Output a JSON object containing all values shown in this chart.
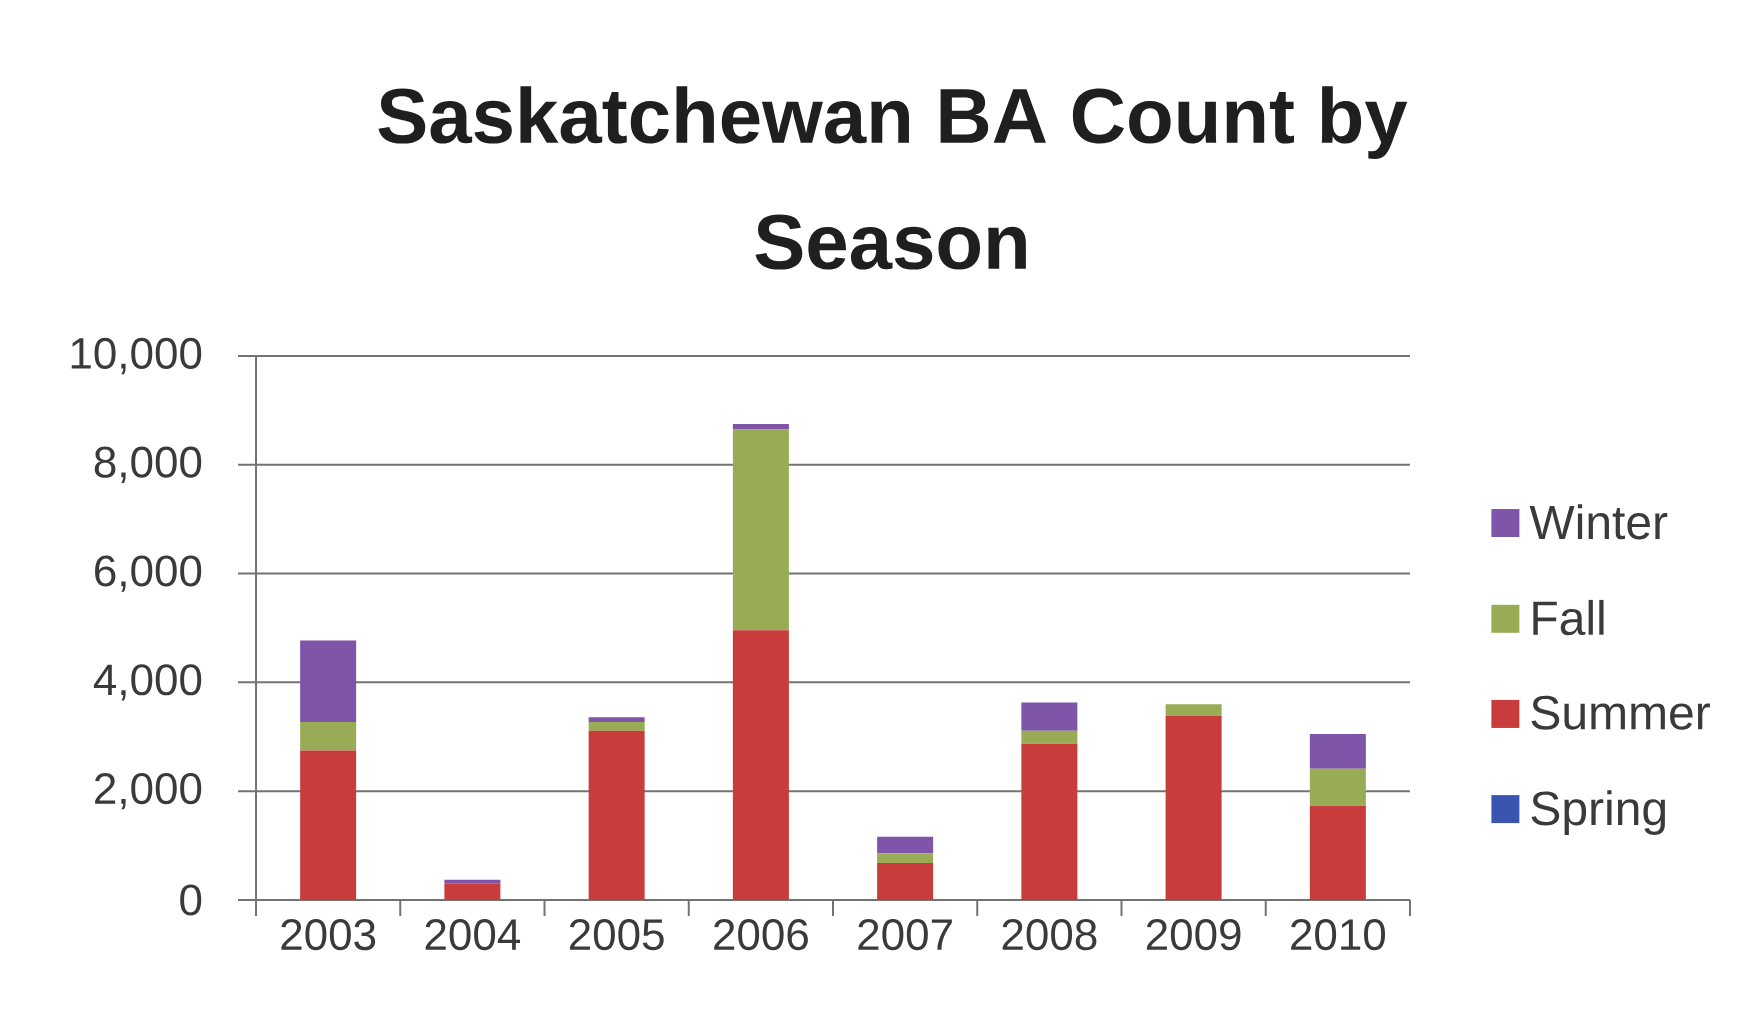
{
  "chart_data": {
    "type": "bar",
    "title": "Saskatchewan BA Count by Season",
    "categories": [
      "2003",
      "2004",
      "2005",
      "2006",
      "2007",
      "2008",
      "2009",
      "2010"
    ],
    "stacked": true,
    "series": [
      {
        "name": "Spring",
        "color": "#3a55b0",
        "values": [
          0,
          0,
          0,
          0,
          0,
          0,
          0,
          0
        ]
      },
      {
        "name": "Summer",
        "color": "#c83c3c",
        "values": [
          2750,
          300,
          3110,
          4960,
          680,
          2870,
          3380,
          1730
        ]
      },
      {
        "name": "Fall",
        "color": "#98ab55",
        "values": [
          520,
          0,
          160,
          3690,
          180,
          240,
          220,
          680
        ]
      },
      {
        "name": "Winter",
        "color": "#7e55a8",
        "values": [
          1500,
          70,
          90,
          100,
          300,
          520,
          0,
          640
        ]
      }
    ],
    "ylim": [
      0,
      10000
    ],
    "yticks": [
      0,
      {
        "value": 2000,
        "label": "2,000"
      },
      {
        "value": 4000,
        "label": "4,000"
      },
      {
        "value": 6000,
        "label": "6,000"
      },
      {
        "value": 8000,
        "label": "8,000"
      },
      {
        "value": 10000,
        "label": "10,000"
      }
    ],
    "grid": "y",
    "legend": "right"
  }
}
